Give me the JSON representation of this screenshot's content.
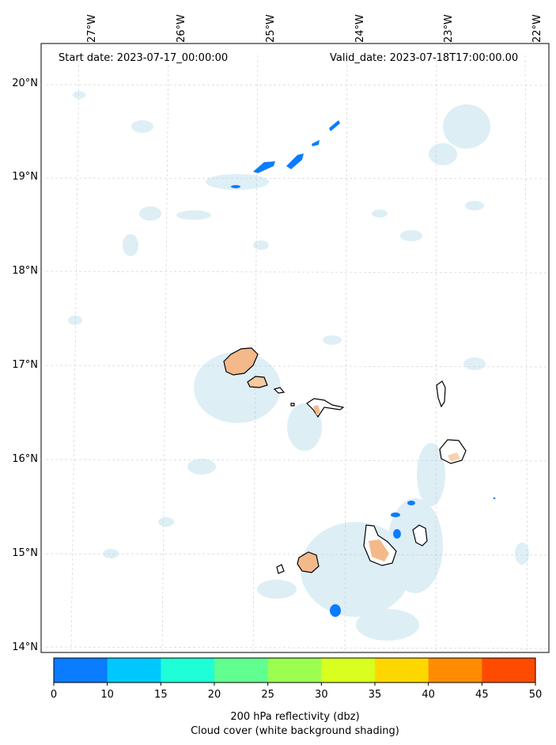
{
  "header": {
    "start_date": "Start date: 2023-07-17_00:00:00",
    "valid_date": "Valid_date: 2023-07-18T17:00:00.00"
  },
  "axes": {
    "longitudes": [
      "27°W",
      "26°W",
      "25°W",
      "24°W",
      "23°W",
      "22°W"
    ],
    "latitudes": [
      "20°N",
      "19°N",
      "18°N",
      "17°N",
      "16°N",
      "15°N",
      "14°N"
    ]
  },
  "colorbar": {
    "ticks": [
      "0",
      "10",
      "15",
      "20",
      "25",
      "30",
      "35",
      "40",
      "45",
      "50"
    ],
    "colors": [
      "#0a7cff",
      "#00c8ff",
      "#1effd8",
      "#60ff90",
      "#9cff50",
      "#d8ff1e",
      "#ffd700",
      "#ff8c00",
      "#ff4b00"
    ],
    "label_line1": "200 hPa reflectivity (dbz)",
    "label_line2": "Cloud cover (white background shading)"
  },
  "map": {
    "region": "Cape Verde Islands",
    "land_fill": "#ffffff",
    "coast_color": "#000000",
    "cloud_color": "#d8ecf4",
    "precip_light_color": "#f4b98a",
    "reflectivity_color": "#0a7cff"
  }
}
